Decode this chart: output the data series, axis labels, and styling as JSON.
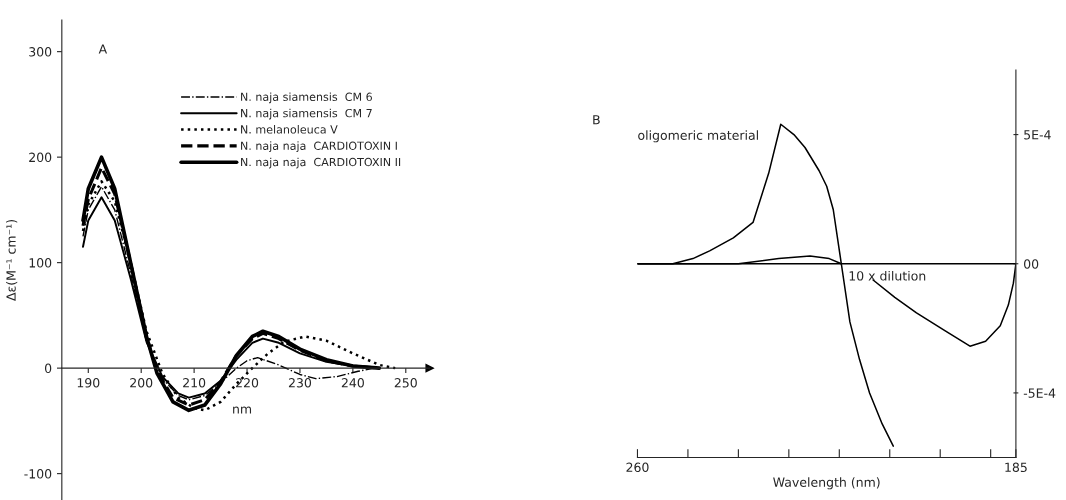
{
  "chart_data": [
    {
      "type": "line",
      "title": "A",
      "xlabel": "nm",
      "ylabel": "Δε(M⁻¹ cm⁻¹)",
      "xlim": [
        185,
        254.5
      ],
      "ylim": [
        -125,
        330
      ],
      "xticks": [
        190,
        200,
        210,
        220,
        230,
        240,
        250
      ],
      "yticks": [
        -100,
        0,
        100,
        200,
        300
      ],
      "grid": false,
      "legend": "top right",
      "marker": "none",
      "series": [
        {
          "name": "N. naja siamensis  CM 6",
          "color": "#000000",
          "line_style": "dashdot",
          "x": [
            189,
            190,
            192.5,
            195,
            198,
            201,
            204,
            207,
            209,
            212,
            215,
            218,
            220,
            222,
            226,
            230,
            233,
            237,
            241,
            244
          ],
          "values": [
            125,
            150,
            172,
            150,
            90,
            25,
            -10,
            -26,
            -30,
            -26,
            -14,
            0,
            7,
            10,
            3,
            -6,
            -10,
            -8,
            -3,
            0
          ]
        },
        {
          "name": "N. naja siamensis  CM 7",
          "color": "#000000",
          "line_style": "solid",
          "x": [
            189,
            190,
            192.5,
            195,
            198,
            201,
            204,
            207,
            209,
            212,
            215,
            218,
            221,
            223,
            226,
            230,
            235,
            240,
            245
          ],
          "values": [
            115,
            140,
            162,
            140,
            85,
            25,
            -8,
            -24,
            -28,
            -24,
            -12,
            8,
            24,
            28,
            24,
            14,
            6,
            2,
            0
          ]
        },
        {
          "name": "N. melanoleuca V",
          "color": "#000000",
          "line_style": "dotted",
          "x": [
            189,
            190,
            192.5,
            195,
            198,
            201,
            204,
            207,
            210,
            212,
            215,
            218,
            221,
            224,
            227,
            231,
            235,
            240,
            245,
            248
          ],
          "values": [
            130,
            155,
            177,
            158,
            100,
            35,
            -5,
            -28,
            -38,
            -40,
            -32,
            -15,
            0,
            14,
            25,
            30,
            26,
            14,
            3,
            0
          ]
        },
        {
          "name": "N. naja naja  CARDIOTOXIN I",
          "color": "#000000",
          "line_style": "dashed",
          "x": [
            189,
            190,
            192.5,
            195,
            198,
            201,
            203,
            206,
            209,
            212,
            215,
            218,
            221,
            223,
            226,
            230,
            235,
            240,
            245
          ],
          "values": [
            135,
            160,
            190,
            165,
            100,
            30,
            -3,
            -28,
            -35,
            -30,
            -13,
            12,
            28,
            33,
            28,
            17,
            7,
            2,
            0
          ]
        },
        {
          "name": "N. naja naja  CARDIOTOXIN II",
          "color": "#000000",
          "line_style": "solid",
          "x": [
            189,
            190,
            192.5,
            195,
            198,
            201,
            203,
            206,
            209,
            212,
            215,
            218,
            221,
            223,
            226,
            230,
            235,
            240,
            245
          ],
          "values": [
            140,
            170,
            200,
            170,
            100,
            30,
            -5,
            -32,
            -40,
            -35,
            -15,
            12,
            30,
            35,
            30,
            18,
            8,
            2,
            0
          ]
        }
      ]
    },
    {
      "type": "line",
      "title": "B",
      "xlabel": "Wavelength (nm)",
      "xlim": [
        260,
        185
      ],
      "ylim": [
        -0.00075,
        0.00075
      ],
      "xticks": [
        260,
        {
          "value": 250,
          "label": null
        },
        {
          "value": 240,
          "label": null
        },
        {
          "value": 230,
          "label": null
        },
        {
          "value": 220,
          "label": null
        },
        {
          "value": 210,
          "label": null
        },
        {
          "value": 200,
          "label": null
        },
        {
          "value": 190,
          "label": null
        },
        185
      ],
      "yticks": [
        {
          "value": 0.0005,
          "label": "5E-4"
        },
        {
          "value": 0,
          "label": "00"
        },
        {
          "value": -0.0005,
          "label": "-5E-4"
        }
      ],
      "grid": false,
      "legend": false,
      "marker": "none",
      "ref_lines": [
        {
          "axis": "y",
          "value": 0,
          "color": "#000000"
        }
      ],
      "annotations": [
        "oligomeric material",
        {
          "text": "10 x dilution",
          "x": 219.6,
          "y": 0
        }
      ],
      "series": [
        {
          "color": "#000000",
          "x": [
            260,
            256,
            253,
            249,
            245.7,
            241,
            237.1,
            234,
            231.6,
            229,
            226.8,
            224,
            222.5,
            221.2,
            219.6,
            217.9,
            216,
            214,
            211.5,
            209.3
          ],
          "values": [
            0,
            0,
            0,
            2e-05,
            5e-05,
            0.0001,
            0.00016,
            0.00035,
            0.00054,
            0.0005,
            0.00045,
            0.00036,
            0.0003,
            0.00021,
            0,
            -0.000225,
            -0.00037,
            -0.0005,
            -0.00062,
            -0.000706
          ]
        },
        {
          "color": "#000000",
          "x": [
            260,
            250,
            240,
            232,
            225.8,
            222,
            219.6,
            216,
            213.3,
            209,
            204.7,
            199,
            194.1,
            191,
            188.1,
            186.5,
            185.5,
            185
          ],
          "values": [
            0,
            0,
            0,
            2e-05,
            3e-05,
            2e-05,
            0,
            null,
            -6.3e-05,
            -0.00013,
            -0.00019,
            -0.00026,
            -0.000319,
            -0.0003,
            -0.00024,
            -0.00016,
            -7.5e-05,
            0
          ]
        }
      ]
    }
  ]
}
